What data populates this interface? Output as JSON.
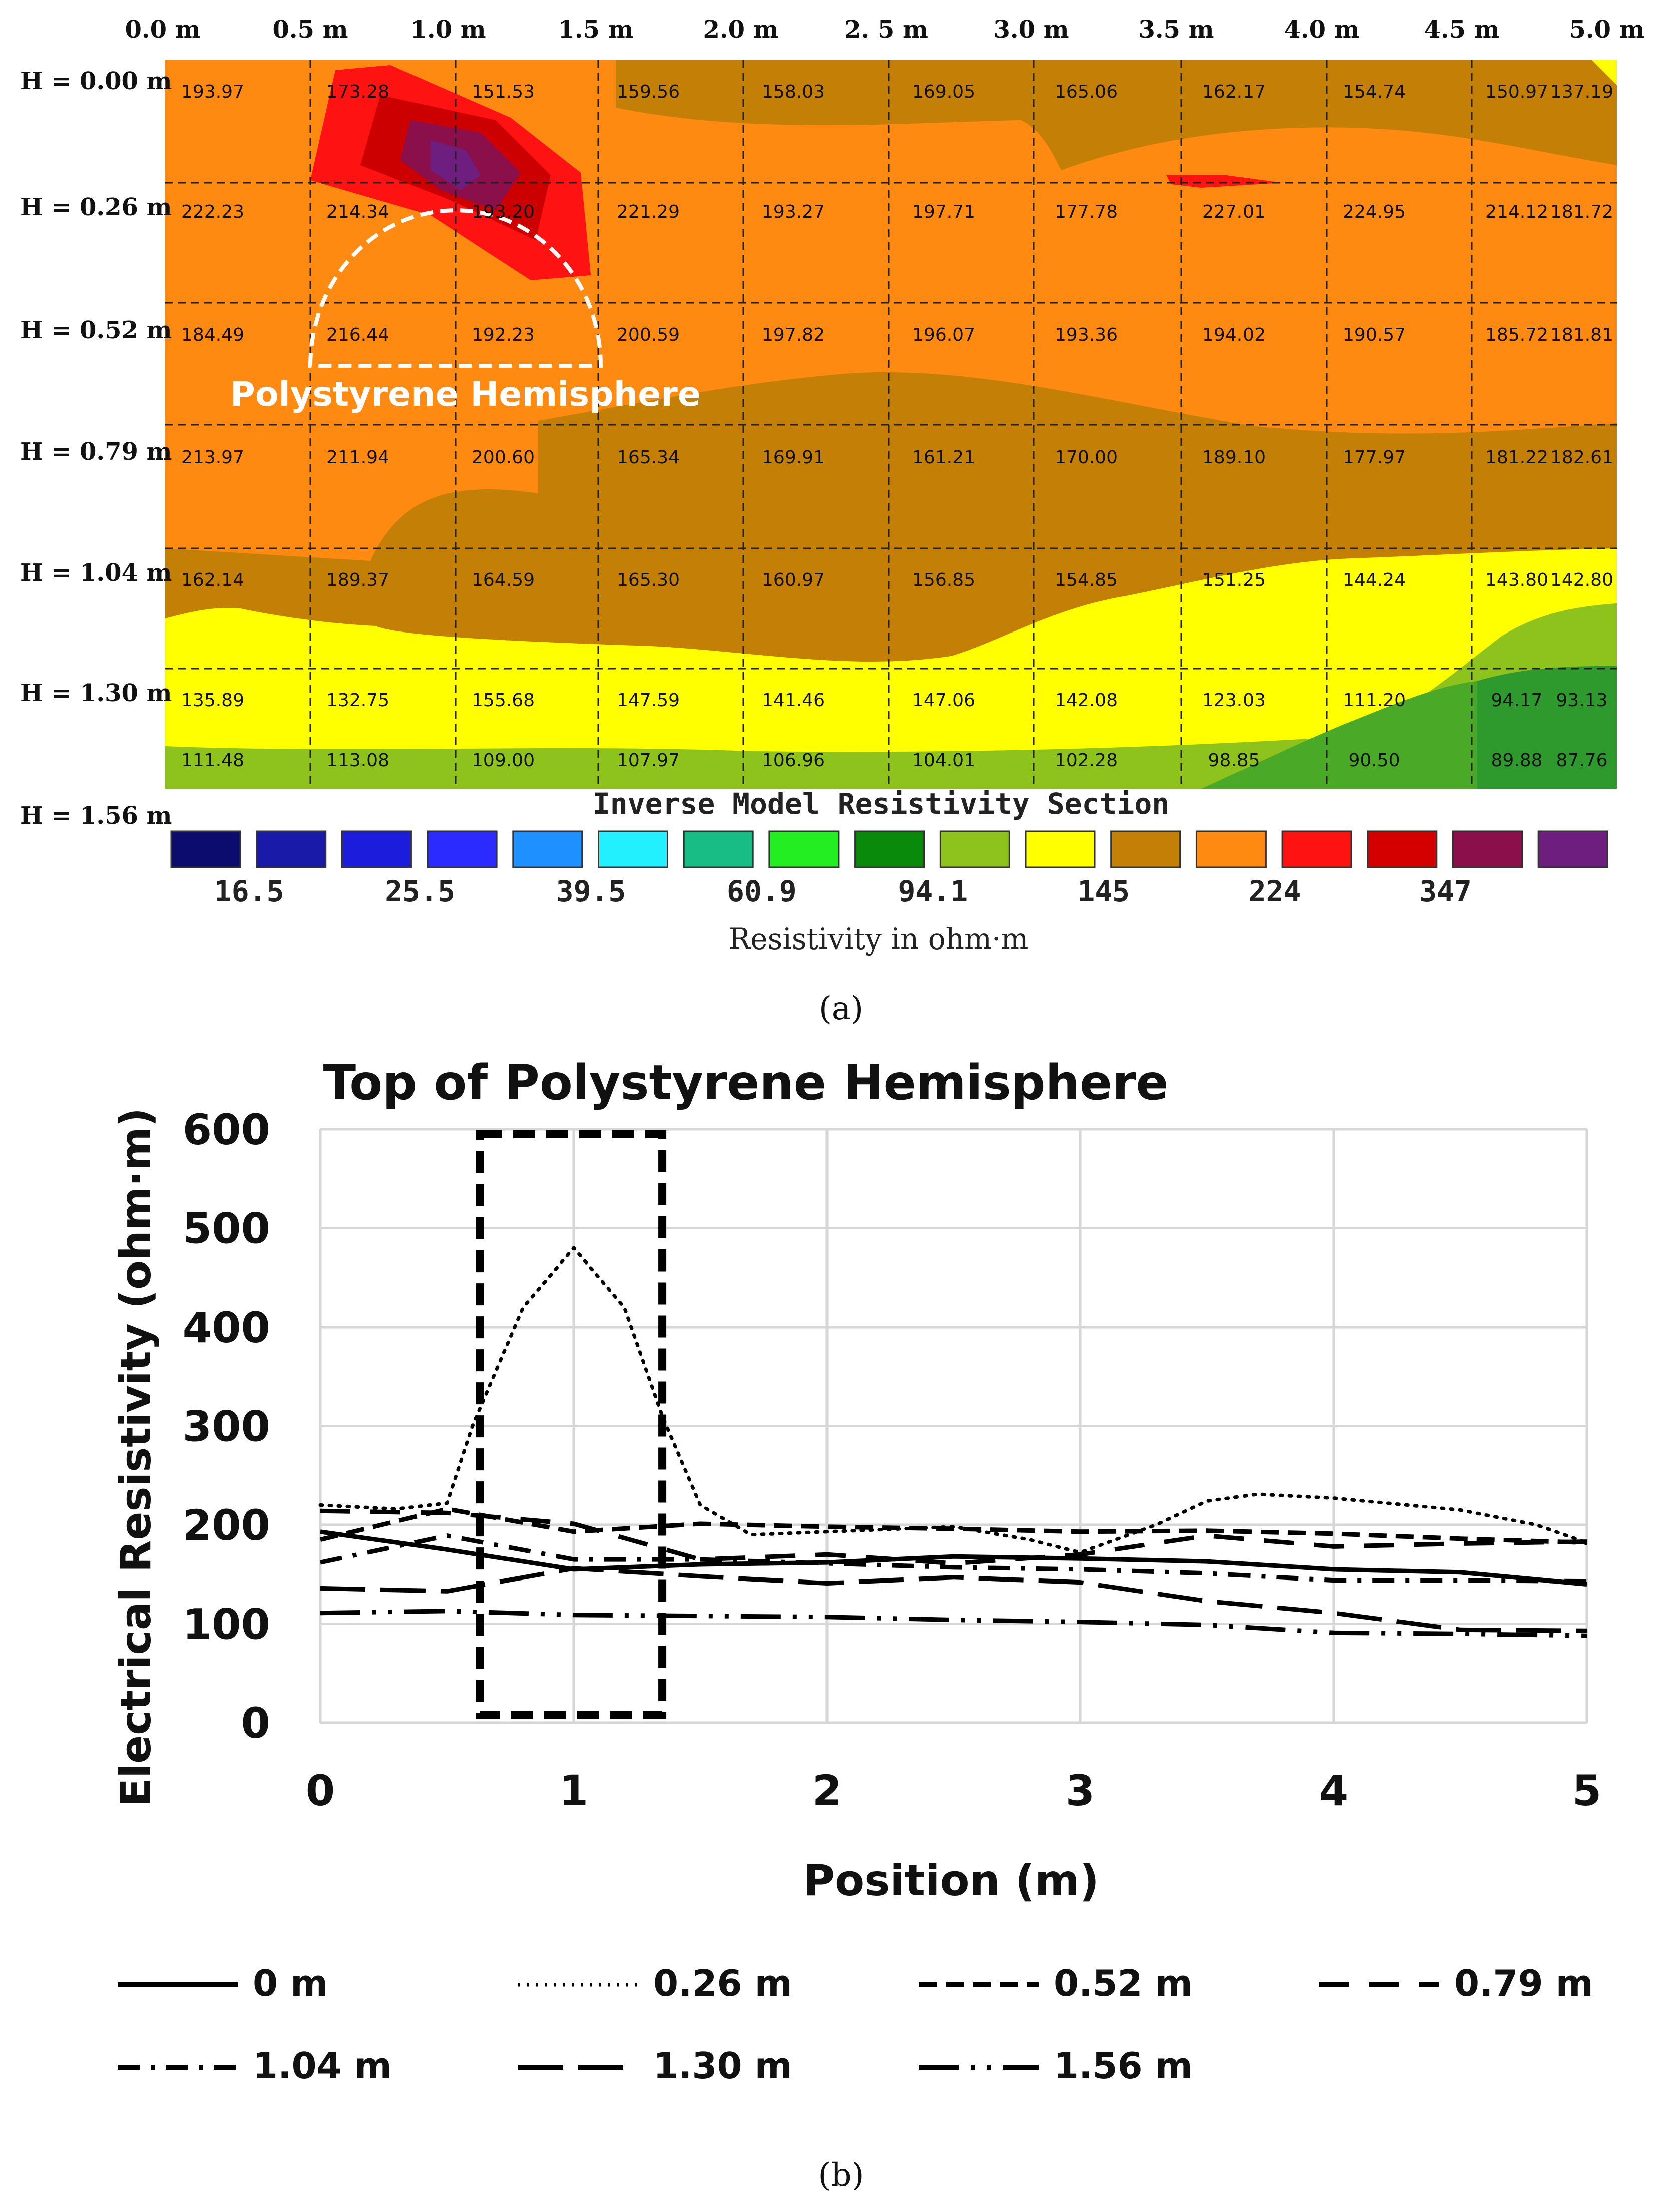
{
  "figure": {
    "panel_a_caption": "(a)",
    "panel_b_caption": "(b)",
    "panel_a_title": "Inverse Model Resistivity Section",
    "panel_a_annotation": "Polystyrene Hemisphere",
    "panel_a_scale_label": "Resistivity in ohm·m",
    "colors": {
      "orange": "#FF8A12",
      "brown": "#C48006",
      "yellow": "#FFFF00",
      "green_light": "#8DC31C",
      "green_dark": "#2E9A2E",
      "red": "#EE1111",
      "dark_red": "#CC0000",
      "purple": "#6E1E7E",
      "line": "#000000"
    }
  },
  "chart_data": [
    {
      "type": "heatmap",
      "title": "Inverse Model Resistivity Section",
      "x_tick_labels": [
        "0.0 m",
        "0.5 m",
        "1.0 m",
        "1.5 m",
        "2.0 m",
        "2. 5 m",
        "3.0 m",
        "3.5 m",
        "4.0 m",
        "4.5 m",
        "5.0 m"
      ],
      "y_tick_labels": [
        "H = 0.00 m",
        "H = 0.26 m",
        "H = 0.52 m",
        "H = 0.79 m",
        "H = 1.04 m",
        "H = 1.30 m",
        "H = 1.56 m"
      ],
      "cell_values": [
        [
          "193.97",
          "173.28",
          "151.53",
          "159.56",
          "158.03",
          "169.05",
          "165.06",
          "162.17",
          "154.74",
          "150.97",
          "137.19"
        ],
        [
          "222.23",
          "214.34",
          "193.20",
          "221.29",
          "193.27",
          "197.71",
          "177.78",
          "227.01",
          "224.95",
          "214.12",
          "181.72"
        ],
        [
          "184.49",
          "216.44",
          "192.23",
          "200.59",
          "197.82",
          "196.07",
          "193.36",
          "194.02",
          "190.57",
          "185.72",
          "181.81"
        ],
        [
          "213.97",
          "211.94",
          "200.60",
          "165.34",
          "169.91",
          "161.21",
          "170.00",
          "189.10",
          "177.97",
          "181.22",
          "182.61"
        ],
        [
          "162.14",
          "189.37",
          "164.59",
          "165.30",
          "160.97",
          "156.85",
          "154.85",
          "151.25",
          "144.24",
          "143.80",
          "142.80"
        ],
        [
          "135.89",
          "132.75",
          "155.68",
          "147.59",
          "141.46",
          "147.06",
          "142.08",
          "123.03",
          "111.20",
          "94.17",
          "93.13"
        ],
        [
          "111.48",
          "113.08",
          "109.00",
          "107.97",
          "106.96",
          "104.01",
          "102.28",
          "98.85",
          "90.50",
          "89.88",
          "87.76"
        ]
      ],
      "color_scale": {
        "colors": [
          "#0C0C6E",
          "#1A1AA8",
          "#1C1CDC",
          "#2B2BFF",
          "#1E90FF",
          "#22F0FF",
          "#17BD84",
          "#22EE22",
          "#0A8A0A",
          "#8DC31C",
          "#FFFF00",
          "#C48006",
          "#FF8A12",
          "#FF1212",
          "#D40000",
          "#8B0F4A",
          "#6E1E7E"
        ],
        "tick_labels": [
          "16.5",
          "25.5",
          "39.5",
          "60.9",
          "94.1",
          "145",
          "224",
          "347"
        ],
        "label": "Resistivity in ohm·m"
      }
    },
    {
      "type": "line",
      "title": "Top of Polystyrene Hemisphere",
      "xlabel": "Position (m)",
      "ylabel": "Electrical Resistivity (ohm·m)",
      "xlim": [
        0,
        5
      ],
      "ylim": [
        0,
        600
      ],
      "x_ticks": [
        "0",
        "1",
        "2",
        "3",
        "4",
        "5"
      ],
      "y_ticks": [
        "0",
        "100",
        "200",
        "300",
        "400",
        "500",
        "600"
      ],
      "highlight_box": {
        "x0": 0.63,
        "x1": 1.35,
        "y0": 8,
        "y1": 595
      },
      "series": [
        {
          "name": "0 m",
          "dash": "solid",
          "points": [
            [
              0,
              193
            ],
            [
              0.5,
              175
            ],
            [
              1,
              155
            ],
            [
              1.5,
              160
            ],
            [
              2,
              162
            ],
            [
              2.5,
              168
            ],
            [
              3,
              166
            ],
            [
              3.5,
              163
            ],
            [
              4,
              155
            ],
            [
              4.5,
              152
            ],
            [
              5,
              140
            ]
          ]
        },
        {
          "name": "0.26 m",
          "dash": "dot",
          "points": [
            [
              0,
              220
            ],
            [
              0.3,
              216
            ],
            [
              0.5,
              222
            ],
            [
              0.6,
              300
            ],
            [
              0.8,
              420
            ],
            [
              1.0,
              480
            ],
            [
              1.2,
              420
            ],
            [
              1.35,
              310
            ],
            [
              1.5,
              220
            ],
            [
              1.7,
              190
            ],
            [
              2,
              193
            ],
            [
              2.5,
              198
            ],
            [
              2.8,
              185
            ],
            [
              3,
              172
            ],
            [
              3.3,
              200
            ],
            [
              3.5,
              224
            ],
            [
              3.7,
              231
            ],
            [
              4,
              227
            ],
            [
              4.5,
              215
            ],
            [
              4.8,
              200
            ],
            [
              5,
              182
            ]
          ]
        },
        {
          "name": "0.52 m",
          "dash": "dash",
          "points": [
            [
              0,
              185
            ],
            [
              0.5,
              216
            ],
            [
              1,
              193
            ],
            [
              1.5,
              201
            ],
            [
              2,
              198
            ],
            [
              2.5,
              196
            ],
            [
              3,
              193
            ],
            [
              3.5,
              194
            ],
            [
              4,
              191
            ],
            [
              4.5,
              186
            ],
            [
              5,
              182
            ]
          ]
        },
        {
          "name": "0.79 m",
          "dash": "longdash",
          "points": [
            [
              0,
              214
            ],
            [
              0.5,
              212
            ],
            [
              1,
              201
            ],
            [
              1.5,
              165
            ],
            [
              2,
              170
            ],
            [
              2.5,
              161
            ],
            [
              3,
              170
            ],
            [
              3.5,
              189
            ],
            [
              4,
              178
            ],
            [
              4.5,
              181
            ],
            [
              5,
              183
            ]
          ]
        },
        {
          "name": "1.04 m",
          "dash": "dashdot",
          "points": [
            [
              0,
              162
            ],
            [
              0.5,
              189
            ],
            [
              1,
              165
            ],
            [
              1.5,
              165
            ],
            [
              2,
              161
            ],
            [
              2.5,
              157
            ],
            [
              3,
              155
            ],
            [
              3.5,
              151
            ],
            [
              4,
              144
            ],
            [
              4.5,
              144
            ],
            [
              5,
              143
            ]
          ]
        },
        {
          "name": "1.30 m",
          "dash": "longdashdash",
          "points": [
            [
              0,
              136
            ],
            [
              0.5,
              133
            ],
            [
              1,
              156
            ],
            [
              1.5,
              148
            ],
            [
              2,
              141
            ],
            [
              2.5,
              147
            ],
            [
              3,
              142
            ],
            [
              3.5,
              123
            ],
            [
              4,
              111
            ],
            [
              4.5,
              94
            ],
            [
              5,
              93
            ]
          ]
        },
        {
          "name": "1.56 m",
          "dash": "longdashdotdot",
          "points": [
            [
              0,
              111
            ],
            [
              0.5,
              113
            ],
            [
              1,
              109
            ],
            [
              1.5,
              108
            ],
            [
              2,
              107
            ],
            [
              2.5,
              104
            ],
            [
              3,
              102
            ],
            [
              3.5,
              99
            ],
            [
              4,
              91
            ],
            [
              4.5,
              90
            ],
            [
              5,
              88
            ]
          ]
        }
      ]
    }
  ]
}
